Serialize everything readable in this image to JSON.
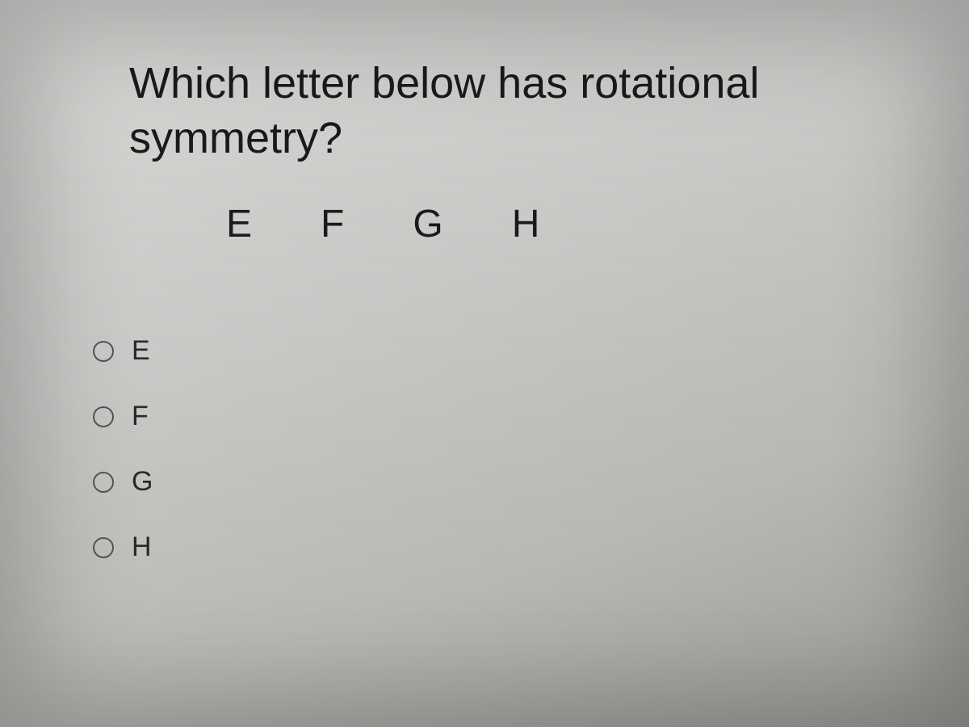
{
  "question": {
    "line1": "Which letter below has rotational",
    "line2": "symmetry?"
  },
  "letters": [
    "E",
    "F",
    "G",
    "H"
  ],
  "options": [
    {
      "label": "E"
    },
    {
      "label": "F"
    },
    {
      "label": "G"
    },
    {
      "label": "H"
    }
  ],
  "style": {
    "question_fontsize": 54,
    "question_color": "#1a1a1a",
    "letter_fontsize": 48,
    "letter_color": "#1a1a1a",
    "option_fontsize": 34,
    "option_color": "#2a2a2a",
    "radio_border_color": "#555555",
    "background_gradient": [
      "#d8dad7",
      "#c8cac7",
      "#b8bab5",
      "#9a9c97"
    ]
  }
}
